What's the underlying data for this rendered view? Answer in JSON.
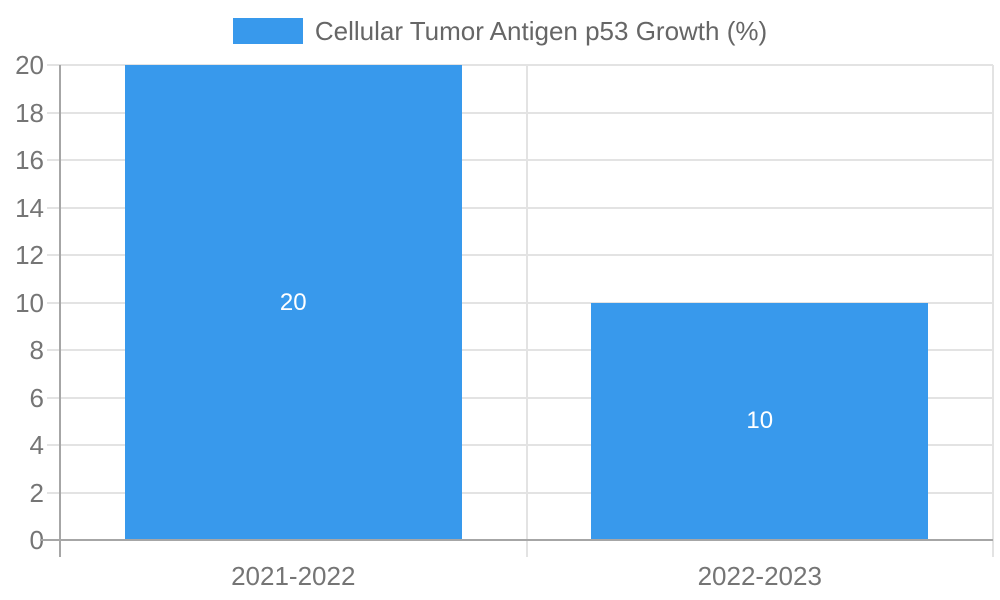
{
  "legend": {
    "label": "Cellular Tumor Antigen p53 Growth (%)"
  },
  "colors": {
    "bar": "#3899ec",
    "legend_text": "#666666",
    "tick_text": "#757575",
    "grid": "#e3e3e3",
    "axis": "#a6a6a6",
    "data_label": "#ffffff",
    "background": "#ffffff"
  },
  "chart_data": {
    "type": "bar",
    "title": "",
    "categories": [
      "2021-2022",
      "2022-2023"
    ],
    "series": [
      {
        "name": "Cellular Tumor Antigen p53 Growth (%)",
        "values": [
          20,
          10
        ]
      }
    ],
    "data_labels": [
      "20",
      "10"
    ],
    "y_ticks": [
      0,
      2,
      4,
      6,
      8,
      10,
      12,
      14,
      16,
      18,
      20
    ],
    "ylim": [
      0,
      20
    ],
    "xlabel": "",
    "ylabel": "",
    "grid": true,
    "legend_position": "top"
  }
}
